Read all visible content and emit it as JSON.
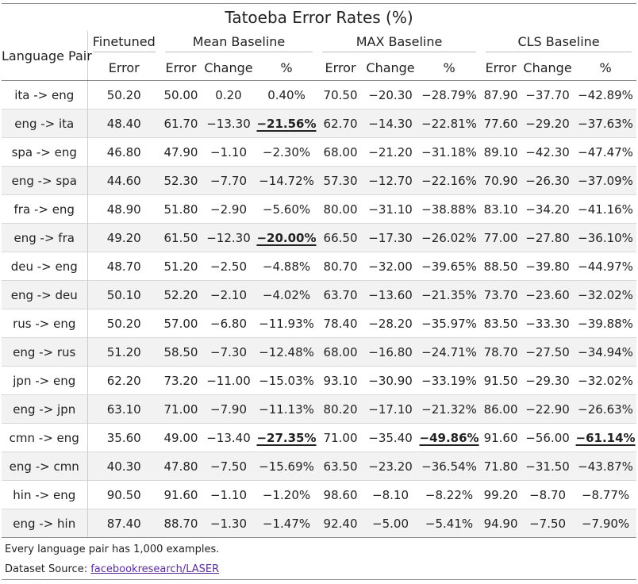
{
  "title": "Tatoeba Error Rates (%)",
  "headers": {
    "pair": "Language Pair",
    "groups": [
      "Finetuned",
      "Mean Baseline",
      "MAX Baseline",
      "CLS Baseline"
    ],
    "sub": [
      "Error",
      "Error",
      "Change",
      "%",
      "Error",
      "Change",
      "%",
      "Error",
      "Change",
      "%"
    ]
  },
  "rows": [
    {
      "pair": "ita -> eng",
      "cells": [
        "50.20",
        "50.00",
        "0.20",
        "0.40%",
        "70.50",
        "−20.30",
        "−28.79%",
        "87.90",
        "−37.70",
        "−42.89%"
      ]
    },
    {
      "pair": "eng -> ita",
      "cells": [
        "48.40",
        "61.70",
        "−13.30",
        "−21.56%",
        "62.70",
        "−14.30",
        "−22.81%",
        "77.60",
        "−29.20",
        "−37.63%"
      ]
    },
    {
      "pair": "spa -> eng",
      "cells": [
        "46.80",
        "47.90",
        "−1.10",
        "−2.30%",
        "68.00",
        "−21.20",
        "−31.18%",
        "89.10",
        "−42.30",
        "−47.47%"
      ]
    },
    {
      "pair": "eng -> spa",
      "cells": [
        "44.60",
        "52.30",
        "−7.70",
        "−14.72%",
        "57.30",
        "−12.70",
        "−22.16%",
        "70.90",
        "−26.30",
        "−37.09%"
      ]
    },
    {
      "pair": "fra -> eng",
      "cells": [
        "48.90",
        "51.80",
        "−2.90",
        "−5.60%",
        "80.00",
        "−31.10",
        "−38.88%",
        "83.10",
        "−34.20",
        "−41.16%"
      ]
    },
    {
      "pair": "eng -> fra",
      "cells": [
        "49.20",
        "61.50",
        "−12.30",
        "−20.00%",
        "66.50",
        "−17.30",
        "−26.02%",
        "77.00",
        "−27.80",
        "−36.10%"
      ]
    },
    {
      "pair": "deu -> eng",
      "cells": [
        "48.70",
        "51.20",
        "−2.50",
        "−4.88%",
        "80.70",
        "−32.00",
        "−39.65%",
        "88.50",
        "−39.80",
        "−44.97%"
      ]
    },
    {
      "pair": "eng -> deu",
      "cells": [
        "50.10",
        "52.20",
        "−2.10",
        "−4.02%",
        "63.70",
        "−13.60",
        "−21.35%",
        "73.70",
        "−23.60",
        "−32.02%"
      ]
    },
    {
      "pair": "rus -> eng",
      "cells": [
        "50.20",
        "57.00",
        "−6.80",
        "−11.93%",
        "78.40",
        "−28.20",
        "−35.97%",
        "83.50",
        "−33.30",
        "−39.88%"
      ]
    },
    {
      "pair": "eng -> rus",
      "cells": [
        "51.20",
        "58.50",
        "−7.30",
        "−12.48%",
        "68.00",
        "−16.80",
        "−24.71%",
        "78.70",
        "−27.50",
        "−34.94%"
      ]
    },
    {
      "pair": "jpn -> eng",
      "cells": [
        "62.20",
        "73.20",
        "−11.00",
        "−15.03%",
        "93.10",
        "−30.90",
        "−33.19%",
        "91.50",
        "−29.30",
        "−32.02%"
      ]
    },
    {
      "pair": "eng -> jpn",
      "cells": [
        "63.10",
        "71.00",
        "−7.90",
        "−11.13%",
        "80.20",
        "−17.10",
        "−21.32%",
        "86.00",
        "−22.90",
        "−26.63%"
      ]
    },
    {
      "pair": "cmn -> eng",
      "cells": [
        "35.60",
        "49.00",
        "−13.40",
        "−27.35%",
        "71.00",
        "−35.40",
        "−49.86%",
        "91.60",
        "−56.00",
        "−61.14%"
      ]
    },
    {
      "pair": "eng -> cmn",
      "cells": [
        "40.30",
        "47.80",
        "−7.50",
        "−15.69%",
        "63.50",
        "−23.20",
        "−36.54%",
        "71.80",
        "−31.50",
        "−43.87%"
      ]
    },
    {
      "pair": "hin -> eng",
      "cells": [
        "90.50",
        "91.60",
        "−1.10",
        "−1.20%",
        "98.60",
        "−8.10",
        "−8.22%",
        "99.20",
        "−8.70",
        "−8.77%"
      ]
    },
    {
      "pair": "eng -> hin",
      "cells": [
        "87.40",
        "88.70",
        "−1.30",
        "−1.47%",
        "92.40",
        "−5.00",
        "−5.41%",
        "94.90",
        "−7.50",
        "−7.90%"
      ]
    }
  ],
  "emphasized": [
    {
      "row": 1,
      "col": 3
    },
    {
      "row": 5,
      "col": 3
    },
    {
      "row": 12,
      "col": 3
    },
    {
      "row": 12,
      "col": 6
    },
    {
      "row": 12,
      "col": 9
    }
  ],
  "notes": {
    "line1": "Every language pair has 1,000 examples.",
    "source_label": "Dataset Source: ",
    "source_link": "facebookresearch/LASER"
  },
  "colors": {
    "stripe": "#f2f2f2",
    "link": "#5a2d9c",
    "rule": "#888888"
  }
}
